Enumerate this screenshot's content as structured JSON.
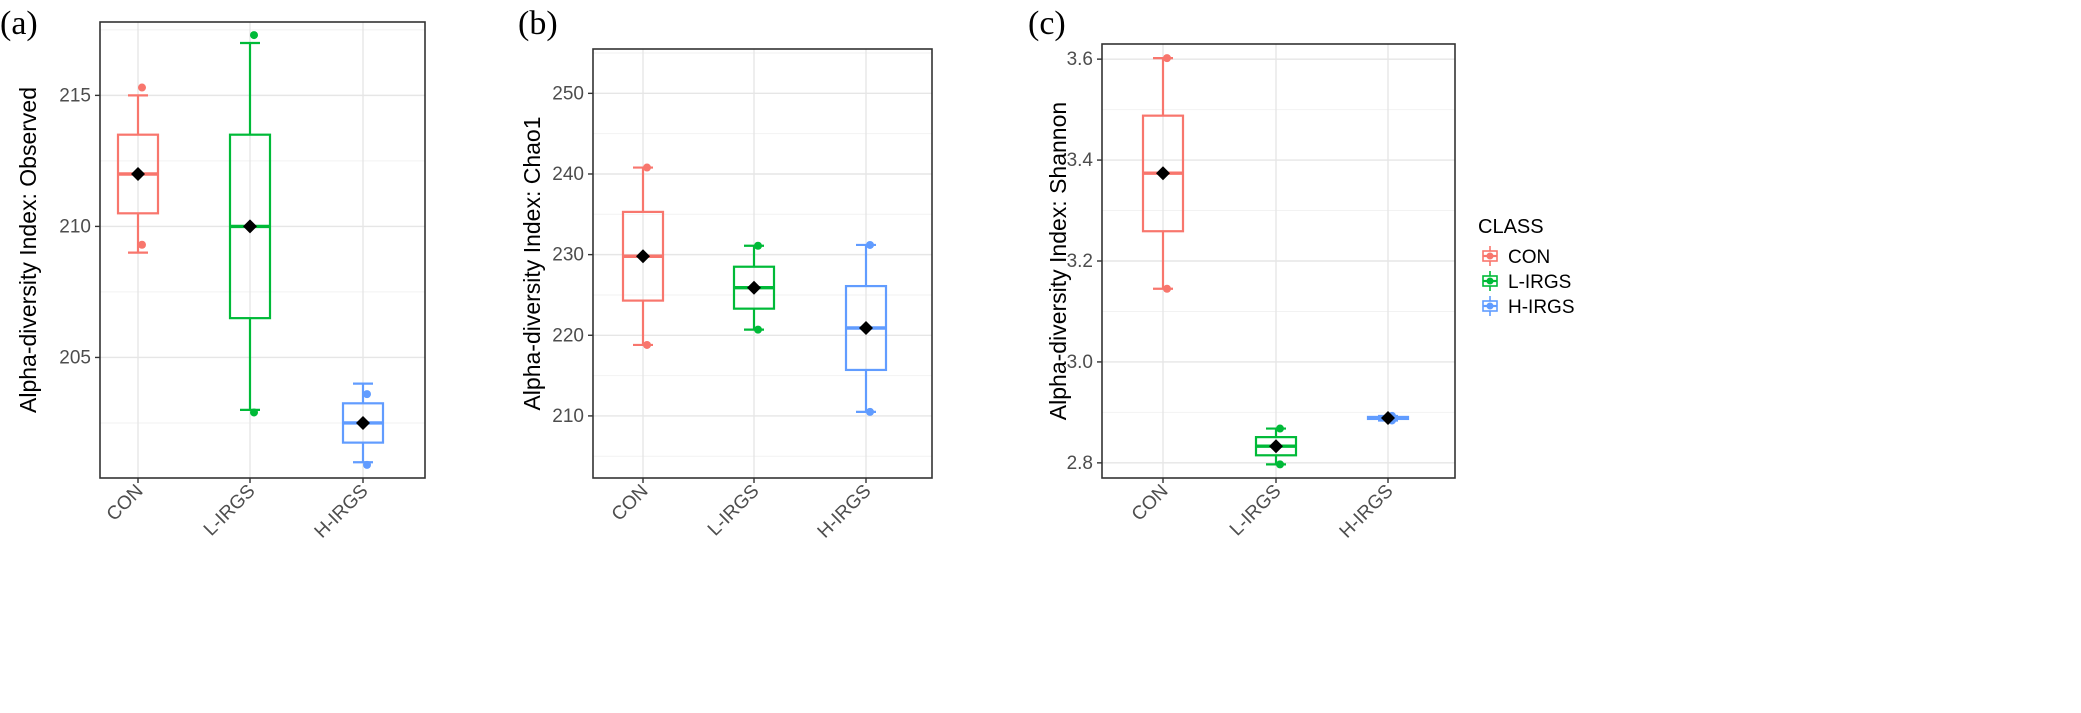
{
  "colors": {
    "CON": "#F8766D",
    "L-IRGS": "#00BA38",
    "H-IRGS": "#619CFF",
    "mean": "#000000",
    "grid_major": "#e6e6e6",
    "grid_minor": "#f2f2f2",
    "frame": "#333333"
  },
  "legend": {
    "title": "CLASS",
    "entries": [
      "CON",
      "L-IRGS",
      "H-IRGS"
    ]
  },
  "chart_data": [
    {
      "panel": "(a)",
      "type": "box",
      "ylabel": "Alpha-diversity Index: Observed",
      "categories": [
        "CON",
        "L-IRGS",
        "H-IRGS"
      ],
      "ylim": [
        200.4,
        217.8
      ],
      "yticks": [
        205,
        210,
        215
      ],
      "minor_yticks": [
        202.5,
        207.5,
        212.5,
        217.5
      ],
      "grid": true,
      "boxes": [
        {
          "name": "CON",
          "min": 209,
          "q1": 210.5,
          "median": 212,
          "q3": 213.5,
          "max": 215,
          "mean": 212,
          "points": [
            215.3,
            209.3
          ]
        },
        {
          "name": "L-IRGS",
          "min": 203,
          "q1": 206.5,
          "median": 210,
          "q3": 213.5,
          "max": 217,
          "mean": 210,
          "points": [
            217.3,
            202.9
          ]
        },
        {
          "name": "H-IRGS",
          "min": 201,
          "q1": 201.75,
          "median": 202.5,
          "q3": 203.25,
          "max": 204,
          "mean": 202.5,
          "points": [
            203.6,
            200.9
          ]
        }
      ]
    },
    {
      "panel": "(b)",
      "type": "box",
      "ylabel": "Alpha-diversity Index: Chao1",
      "categories": [
        "CON",
        "L-IRGS",
        "H-IRGS"
      ],
      "ylim": [
        202.3,
        255.5
      ],
      "yticks": [
        210,
        220,
        230,
        240,
        250
      ],
      "minor_yticks": [
        205,
        215,
        225,
        235,
        245,
        255
      ],
      "grid": true,
      "boxes": [
        {
          "name": "CON",
          "min": 218.8,
          "q1": 224.3,
          "median": 229.8,
          "q3": 235.3,
          "max": 240.8,
          "mean": 229.8,
          "points": [
            240.8,
            218.8
          ]
        },
        {
          "name": "L-IRGS",
          "min": 220.7,
          "q1": 223.3,
          "median": 225.9,
          "q3": 228.5,
          "max": 231.1,
          "mean": 225.9,
          "points": [
            231.1,
            220.7
          ]
        },
        {
          "name": "H-IRGS",
          "min": 210.5,
          "q1": 215.7,
          "median": 220.9,
          "q3": 226.1,
          "max": 231.2,
          "mean": 220.9,
          "points": [
            231.2,
            210.5
          ]
        }
      ]
    },
    {
      "panel": "(c)",
      "type": "box",
      "ylabel": "Alpha-diversity Index: Shannon",
      "categories": [
        "CON",
        "L-IRGS",
        "H-IRGS"
      ],
      "ylim": [
        2.77,
        3.63
      ],
      "yticks": [
        2.8,
        3.0,
        3.2,
        3.4,
        3.6
      ],
      "minor_yticks": [
        2.9,
        3.1,
        3.3,
        3.5
      ],
      "grid": true,
      "boxes": [
        {
          "name": "CON",
          "min": 3.145,
          "q1": 3.259,
          "median": 3.374,
          "q3": 3.488,
          "max": 3.602,
          "mean": 3.374,
          "points": [
            3.602,
            3.145
          ]
        },
        {
          "name": "L-IRGS",
          "min": 2.797,
          "q1": 2.815,
          "median": 2.833,
          "q3": 2.851,
          "max": 2.868,
          "mean": 2.833,
          "points": [
            2.868,
            2.797
          ]
        },
        {
          "name": "H-IRGS",
          "min": 2.884,
          "q1": 2.887,
          "median": 2.889,
          "q3": 2.891,
          "max": 2.893,
          "mean": 2.889,
          "points": [
            2.893,
            2.884
          ]
        }
      ]
    }
  ]
}
